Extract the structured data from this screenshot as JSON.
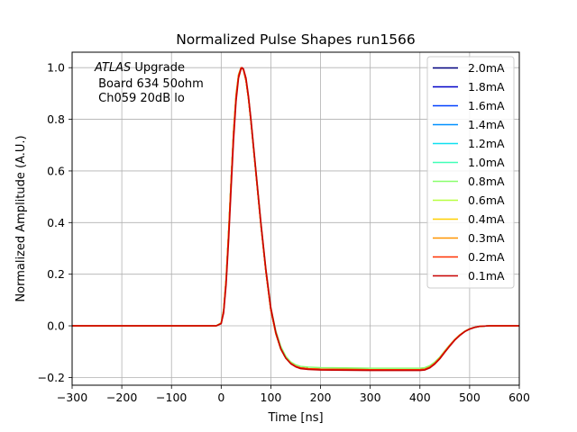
{
  "chart_data": {
    "type": "line",
    "title": "Normalized Pulse Shapes run1566",
    "xlabel": "Time [ns]",
    "ylabel": "Normalized Amplitude (A.U.)",
    "xlim": [
      -300,
      600
    ],
    "ylim": [
      -0.23,
      1.06
    ],
    "xticks": [
      -300,
      -200,
      -100,
      0,
      100,
      200,
      300,
      400,
      500,
      600
    ],
    "xtick_labels": [
      "−300",
      "−200",
      "−100",
      "0",
      "100",
      "200",
      "300",
      "400",
      "500",
      "600"
    ],
    "yticks": [
      -0.2,
      0.0,
      0.2,
      0.4,
      0.6,
      0.8,
      1.0
    ],
    "ytick_labels": [
      "−0.2",
      "0.0",
      "0.2",
      "0.4",
      "0.6",
      "0.8",
      "1.0"
    ],
    "grid": true,
    "legend_position": "top-right",
    "annotation": {
      "atlas": "ATLAS",
      "line1_rest": " Upgrade",
      "line2": " Board 634 50ohm",
      "line3": " Ch059 20dB lo"
    },
    "x": [
      -300,
      -250,
      -200,
      -150,
      -100,
      -50,
      -10,
      0,
      5,
      10,
      15,
      20,
      25,
      30,
      35,
      40,
      42,
      45,
      50,
      55,
      60,
      65,
      70,
      80,
      90,
      100,
      110,
      120,
      130,
      140,
      150,
      160,
      175,
      200,
      250,
      300,
      350,
      380,
      400,
      410,
      420,
      430,
      440,
      450,
      460,
      470,
      480,
      490,
      500,
      510,
      520,
      540,
      560,
      600
    ],
    "series": [
      {
        "name": "2.0mA",
        "color": "#00007f",
        "values": [
          0,
          0,
          0,
          0,
          0,
          0,
          0,
          0.01,
          0.06,
          0.18,
          0.36,
          0.56,
          0.75,
          0.89,
          0.97,
          1.0,
          1.0,
          0.99,
          0.95,
          0.88,
          0.79,
          0.69,
          0.59,
          0.39,
          0.21,
          0.06,
          -0.03,
          -0.09,
          -0.125,
          -0.145,
          -0.157,
          -0.163,
          -0.166,
          -0.168,
          -0.169,
          -0.17,
          -0.17,
          -0.17,
          -0.17,
          -0.168,
          -0.16,
          -0.145,
          -0.125,
          -0.1,
          -0.076,
          -0.054,
          -0.036,
          -0.022,
          -0.012,
          -0.006,
          -0.002,
          0,
          0,
          0
        ]
      },
      {
        "name": "1.8mA",
        "color": "#0000c8",
        "values": [
          0,
          0,
          0,
          0,
          0,
          0,
          0,
          0.01,
          0.06,
          0.18,
          0.36,
          0.56,
          0.75,
          0.89,
          0.97,
          1.0,
          1.0,
          0.99,
          0.95,
          0.88,
          0.79,
          0.69,
          0.59,
          0.39,
          0.21,
          0.06,
          -0.03,
          -0.09,
          -0.125,
          -0.145,
          -0.157,
          -0.163,
          -0.166,
          -0.168,
          -0.169,
          -0.17,
          -0.17,
          -0.17,
          -0.17,
          -0.168,
          -0.16,
          -0.145,
          -0.125,
          -0.1,
          -0.076,
          -0.054,
          -0.036,
          -0.022,
          -0.012,
          -0.006,
          -0.002,
          0,
          0,
          0
        ]
      },
      {
        "name": "1.6mA",
        "color": "#0040ff",
        "values": [
          0,
          0,
          0,
          0,
          0,
          0,
          0,
          0.01,
          0.06,
          0.18,
          0.36,
          0.56,
          0.75,
          0.89,
          0.97,
          1.0,
          1.0,
          0.99,
          0.95,
          0.88,
          0.79,
          0.69,
          0.59,
          0.39,
          0.21,
          0.06,
          -0.03,
          -0.09,
          -0.125,
          -0.145,
          -0.157,
          -0.163,
          -0.166,
          -0.168,
          -0.169,
          -0.17,
          -0.17,
          -0.17,
          -0.17,
          -0.168,
          -0.16,
          -0.145,
          -0.125,
          -0.1,
          -0.076,
          -0.054,
          -0.036,
          -0.022,
          -0.012,
          -0.006,
          -0.002,
          0,
          0,
          0
        ]
      },
      {
        "name": "1.4mA",
        "color": "#0090ff",
        "values": [
          0,
          0,
          0,
          0,
          0,
          0,
          0,
          0.01,
          0.06,
          0.18,
          0.36,
          0.56,
          0.75,
          0.89,
          0.97,
          1.0,
          1.0,
          0.99,
          0.95,
          0.88,
          0.79,
          0.69,
          0.59,
          0.39,
          0.21,
          0.06,
          -0.03,
          -0.09,
          -0.125,
          -0.145,
          -0.157,
          -0.163,
          -0.166,
          -0.168,
          -0.169,
          -0.17,
          -0.17,
          -0.17,
          -0.17,
          -0.168,
          -0.16,
          -0.145,
          -0.125,
          -0.1,
          -0.076,
          -0.054,
          -0.036,
          -0.022,
          -0.012,
          -0.006,
          -0.002,
          0,
          0,
          0
        ]
      },
      {
        "name": "1.2mA",
        "color": "#0fe0f0",
        "values": [
          0,
          0,
          0,
          0,
          0,
          0,
          0,
          0.01,
          0.06,
          0.18,
          0.36,
          0.56,
          0.75,
          0.89,
          0.97,
          1.0,
          1.0,
          0.99,
          0.95,
          0.88,
          0.79,
          0.69,
          0.59,
          0.39,
          0.21,
          0.06,
          -0.03,
          -0.09,
          -0.125,
          -0.145,
          -0.157,
          -0.163,
          -0.166,
          -0.168,
          -0.169,
          -0.17,
          -0.17,
          -0.17,
          -0.17,
          -0.168,
          -0.16,
          -0.145,
          -0.125,
          -0.1,
          -0.076,
          -0.054,
          -0.036,
          -0.022,
          -0.012,
          -0.006,
          -0.002,
          0,
          0,
          0
        ]
      },
      {
        "name": "1.0mA",
        "color": "#40ffb7",
        "values": [
          0,
          0,
          0,
          0,
          0,
          0,
          0,
          0.01,
          0.06,
          0.18,
          0.36,
          0.56,
          0.75,
          0.89,
          0.97,
          1.0,
          1.0,
          0.99,
          0.95,
          0.88,
          0.79,
          0.69,
          0.59,
          0.39,
          0.21,
          0.06,
          -0.03,
          -0.09,
          -0.125,
          -0.145,
          -0.157,
          -0.163,
          -0.166,
          -0.168,
          -0.169,
          -0.17,
          -0.17,
          -0.17,
          -0.17,
          -0.168,
          -0.16,
          -0.145,
          -0.125,
          -0.1,
          -0.076,
          -0.054,
          -0.036,
          -0.022,
          -0.012,
          -0.006,
          -0.002,
          0,
          0,
          0
        ]
      },
      {
        "name": "0.8mA",
        "color": "#89ff6d",
        "values": [
          0,
          0,
          0,
          0,
          0,
          0,
          0,
          0.012,
          0.065,
          0.19,
          0.37,
          0.57,
          0.76,
          0.9,
          0.975,
          1.0,
          1.0,
          0.99,
          0.95,
          0.885,
          0.8,
          0.7,
          0.6,
          0.4,
          0.22,
          0.07,
          -0.02,
          -0.08,
          -0.118,
          -0.14,
          -0.151,
          -0.157,
          -0.16,
          -0.162,
          -0.163,
          -0.164,
          -0.164,
          -0.164,
          -0.164,
          -0.162,
          -0.154,
          -0.14,
          -0.121,
          -0.097,
          -0.074,
          -0.053,
          -0.035,
          -0.021,
          -0.012,
          -0.006,
          -0.002,
          0,
          0,
          0
        ]
      },
      {
        "name": "0.6mA",
        "color": "#b7ff40",
        "values": [
          0,
          0,
          0,
          0,
          0,
          0,
          0,
          0.01,
          0.06,
          0.18,
          0.36,
          0.56,
          0.75,
          0.89,
          0.97,
          1.0,
          1.0,
          0.99,
          0.95,
          0.88,
          0.79,
          0.69,
          0.59,
          0.39,
          0.21,
          0.06,
          -0.03,
          -0.09,
          -0.125,
          -0.145,
          -0.157,
          -0.163,
          -0.166,
          -0.168,
          -0.169,
          -0.17,
          -0.17,
          -0.17,
          -0.17,
          -0.168,
          -0.16,
          -0.145,
          -0.125,
          -0.1,
          -0.076,
          -0.054,
          -0.036,
          -0.022,
          -0.012,
          -0.006,
          -0.002,
          0,
          0,
          0
        ]
      },
      {
        "name": "0.4mA",
        "color": "#ffd000",
        "values": [
          0,
          0,
          0,
          0,
          0,
          0,
          0,
          0.01,
          0.06,
          0.18,
          0.36,
          0.56,
          0.75,
          0.89,
          0.97,
          1.0,
          1.0,
          0.99,
          0.95,
          0.88,
          0.79,
          0.69,
          0.59,
          0.39,
          0.21,
          0.06,
          -0.03,
          -0.09,
          -0.125,
          -0.145,
          -0.157,
          -0.163,
          -0.166,
          -0.168,
          -0.169,
          -0.17,
          -0.17,
          -0.17,
          -0.17,
          -0.168,
          -0.16,
          -0.145,
          -0.125,
          -0.1,
          -0.076,
          -0.054,
          -0.036,
          -0.022,
          -0.012,
          -0.006,
          -0.002,
          0,
          0,
          0
        ]
      },
      {
        "name": "0.3mA",
        "color": "#ff9400",
        "values": [
          0,
          0,
          0,
          0,
          0,
          0,
          0,
          0.01,
          0.06,
          0.18,
          0.36,
          0.56,
          0.75,
          0.89,
          0.97,
          1.0,
          1.0,
          0.99,
          0.95,
          0.88,
          0.79,
          0.69,
          0.59,
          0.39,
          0.21,
          0.06,
          -0.03,
          -0.09,
          -0.125,
          -0.145,
          -0.157,
          -0.163,
          -0.166,
          -0.168,
          -0.169,
          -0.17,
          -0.17,
          -0.17,
          -0.17,
          -0.168,
          -0.16,
          -0.145,
          -0.125,
          -0.1,
          -0.076,
          -0.054,
          -0.036,
          -0.022,
          -0.012,
          -0.006,
          -0.002,
          0,
          0,
          0
        ]
      },
      {
        "name": "0.2mA",
        "color": "#ff3000",
        "values": [
          0,
          0,
          0,
          0,
          0,
          0,
          0,
          0.01,
          0.06,
          0.18,
          0.36,
          0.56,
          0.75,
          0.89,
          0.97,
          1.0,
          1.0,
          0.99,
          0.95,
          0.88,
          0.79,
          0.69,
          0.59,
          0.39,
          0.21,
          0.06,
          -0.03,
          -0.09,
          -0.125,
          -0.145,
          -0.157,
          -0.163,
          -0.166,
          -0.168,
          -0.169,
          -0.17,
          -0.17,
          -0.17,
          -0.17,
          -0.168,
          -0.16,
          -0.145,
          -0.125,
          -0.1,
          -0.076,
          -0.054,
          -0.036,
          -0.022,
          -0.012,
          -0.006,
          -0.002,
          0,
          0,
          0
        ]
      },
      {
        "name": "0.1mA",
        "color": "#c80000",
        "values": [
          0,
          0,
          0,
          0,
          0,
          0,
          0,
          0.008,
          0.05,
          0.16,
          0.33,
          0.53,
          0.72,
          0.87,
          0.96,
          0.995,
          1.0,
          0.995,
          0.96,
          0.89,
          0.8,
          0.7,
          0.6,
          0.4,
          0.22,
          0.07,
          -0.025,
          -0.088,
          -0.125,
          -0.147,
          -0.159,
          -0.166,
          -0.169,
          -0.171,
          -0.172,
          -0.173,
          -0.173,
          -0.173,
          -0.173,
          -0.171,
          -0.163,
          -0.148,
          -0.128,
          -0.103,
          -0.079,
          -0.056,
          -0.038,
          -0.023,
          -0.013,
          -0.006,
          -0.002,
          0,
          0,
          0
        ]
      }
    ]
  }
}
